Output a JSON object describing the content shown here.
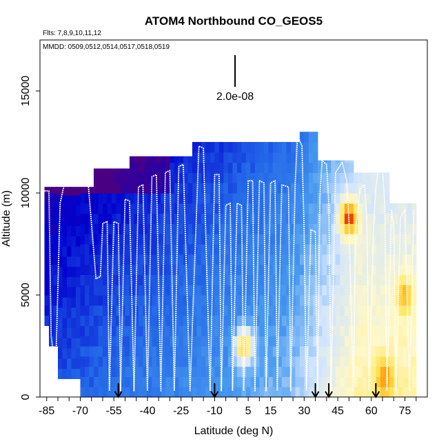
{
  "chart_data": {
    "type": "heatmap",
    "title": "ATOM4 Northbound CO_GEOS5",
    "subtitle_flights": "Flts: 7,8,9,10,11,12",
    "subtitle_dates": "MMDD: 0509,0512,0514,0517,0518,0519",
    "xlabel": "Latitude (deg N)",
    "ylabel": "Altitude (m)",
    "xlim": [
      -88,
      85
    ],
    "ylim": [
      0,
      17500
    ],
    "x_ticks": [
      -85,
      -70,
      -55,
      -40,
      -25,
      -10,
      5,
      15,
      30,
      45,
      60,
      75
    ],
    "y_ticks": [
      0,
      5000,
      10000,
      15000
    ],
    "scale_bar_label": "2.0e-08",
    "arrow_latitudes": [
      -53,
      -10,
      35,
      41,
      62
    ],
    "colormap": [
      "#4b0082",
      "#0000cd",
      "#2266e8",
      "#4a9cf0",
      "#cfe4ff",
      "#fff8c8",
      "#ffe45a",
      "#ff9a00",
      "#d60000"
    ],
    "column_tops": [
      {
        "x": [
          -86,
          -64
        ],
        "top": 10300
      },
      {
        "x": [
          -64,
          -49
        ],
        "top": 11200
      },
      {
        "x": [
          -49,
          -20
        ],
        "top": 11800
      },
      {
        "x": [
          -20,
          28
        ],
        "top": 12500
      },
      {
        "x": [
          28,
          35
        ],
        "top": 13000
      },
      {
        "x": [
          35,
          52
        ],
        "top": 11600
      },
      {
        "x": [
          52,
          68
        ],
        "top": 11000
      },
      {
        "x": [
          68,
          80
        ],
        "top": 9500
      }
    ],
    "column_bottoms": [
      {
        "x": [
          -86,
          -84
        ],
        "bottom": 3500
      },
      {
        "x": [
          -84,
          -80
        ],
        "bottom": 2500
      },
      {
        "x": [
          -80,
          -70
        ],
        "bottom": 900
      },
      {
        "x": [
          -70,
          85
        ],
        "bottom": 0
      }
    ],
    "hot_spots": [
      {
        "x": 3,
        "y": 2500,
        "value": "high"
      },
      {
        "x": 50,
        "y": 8800,
        "value": "high"
      },
      {
        "x": 66,
        "y": 1000,
        "value": "moderate"
      },
      {
        "x": 75,
        "y": 5000,
        "value": "moderate"
      }
    ],
    "profiles_note_free": true,
    "profile_vertices": [
      [
        -86,
        10100
      ],
      [
        -84,
        10100
      ],
      [
        -83,
        3000
      ],
      [
        -81,
        1200
      ],
      [
        -79,
        9500
      ],
      [
        -77,
        10500
      ],
      [
        -70,
        10900
      ],
      [
        -67,
        11200
      ],
      [
        -63,
        5800
      ],
      [
        -61,
        5900
      ],
      [
        -60,
        8500
      ],
      [
        -58,
        8600
      ],
      [
        -57,
        300
      ],
      [
        -55,
        8600
      ],
      [
        -53,
        8500
      ],
      [
        -52,
        300
      ],
      [
        -50,
        9700
      ],
      [
        -48,
        9600
      ],
      [
        -46,
        300
      ],
      [
        -44,
        10300
      ],
      [
        -42,
        10400
      ],
      [
        -40,
        300
      ],
      [
        -38,
        10800
      ],
      [
        -36,
        10900
      ],
      [
        -34,
        300
      ],
      [
        -32,
        11000
      ],
      [
        -30,
        11100
      ],
      [
        -28,
        300
      ],
      [
        -26,
        11300
      ],
      [
        -24,
        11400
      ],
      [
        -21,
        300
      ],
      [
        -17,
        12300
      ],
      [
        -15,
        12200
      ],
      [
        -12,
        300
      ],
      [
        -10,
        10900
      ],
      [
        -8,
        10900
      ],
      [
        -7,
        300
      ],
      [
        -5,
        9400
      ],
      [
        -3,
        9500
      ],
      [
        -2,
        300
      ],
      [
        0,
        9500
      ],
      [
        2,
        9400
      ],
      [
        3,
        300
      ],
      [
        5,
        10600
      ],
      [
        7,
        10600
      ],
      [
        8,
        300
      ],
      [
        10,
        10600
      ],
      [
        12,
        10500
      ],
      [
        13,
        300
      ],
      [
        15,
        10500
      ],
      [
        17,
        10600
      ],
      [
        18,
        300
      ],
      [
        20,
        10400
      ],
      [
        23,
        10300
      ],
      [
        24,
        300
      ],
      [
        26,
        10500
      ],
      [
        27,
        12800
      ],
      [
        29,
        12300
      ],
      [
        30,
        8000
      ],
      [
        31,
        300
      ],
      [
        33,
        8200
      ],
      [
        35,
        8100
      ],
      [
        36,
        300
      ],
      [
        37,
        9800
      ],
      [
        38,
        11600
      ],
      [
        40,
        11400
      ],
      [
        41,
        9500
      ],
      [
        42,
        300
      ],
      [
        44,
        11000
      ],
      [
        47,
        11500
      ],
      [
        49,
        10600
      ],
      [
        50,
        8600
      ],
      [
        52,
        300
      ],
      [
        53,
        8200
      ],
      [
        55,
        10200
      ],
      [
        57,
        10400
      ],
      [
        58,
        8600
      ],
      [
        59,
        300
      ],
      [
        61,
        8300
      ],
      [
        62,
        10300
      ],
      [
        63,
        11000
      ],
      [
        65,
        11200
      ],
      [
        66,
        9400
      ],
      [
        67,
        300
      ],
      [
        69,
        9200
      ],
      [
        70,
        8300
      ],
      [
        71,
        300
      ],
      [
        73,
        8800
      ],
      [
        75,
        9200
      ],
      [
        77,
        300
      ],
      [
        79,
        9200
      ]
    ]
  }
}
